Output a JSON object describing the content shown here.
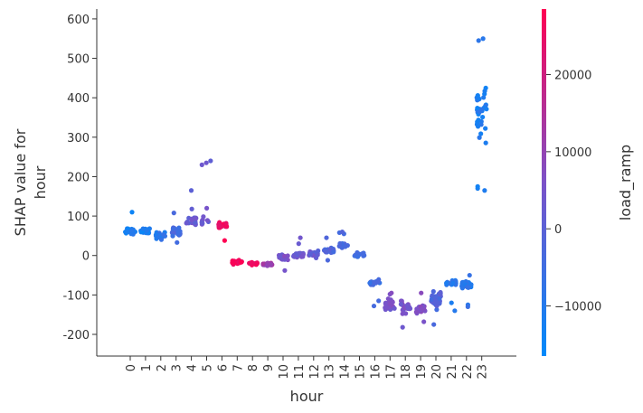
{
  "chart_data": {
    "type": "scatter",
    "title": "",
    "xlabel": "hour",
    "ylabel_line1": "SHAP value for",
    "ylabel_line2": "hour",
    "colorbar_label": "load_ramp",
    "categories": [
      "0",
      "1",
      "2",
      "3",
      "4",
      "5",
      "6",
      "7",
      "8",
      "9",
      "10",
      "11",
      "12",
      "13",
      "14",
      "15",
      "16",
      "17",
      "18",
      "19",
      "20",
      "21",
      "22",
      "23"
    ],
    "ylim": [
      -255,
      625
    ],
    "yticks": [
      -200,
      -100,
      0,
      100,
      200,
      300,
      400,
      500,
      600
    ],
    "color_range": [
      -16500,
      28500
    ],
    "colorbar_ticks": [
      -10000,
      0,
      10000,
      20000
    ],
    "colormap": [
      "#008afb",
      "#7c52c8",
      "#ff0052"
    ],
    "clusters": [
      {
        "hour": 0,
        "center": 62,
        "spread": 14,
        "count": 22,
        "color": -12000,
        "extras": [
          110
        ]
      },
      {
        "hour": 1,
        "center": 62,
        "spread": 10,
        "count": 24,
        "color": -12000,
        "extras": []
      },
      {
        "hour": 2,
        "center": 50,
        "spread": 12,
        "count": 24,
        "color": -9000,
        "extras": []
      },
      {
        "hour": 3,
        "center": 60,
        "spread": 16,
        "count": 24,
        "color": -4000,
        "extras": [
          108,
          33
        ]
      },
      {
        "hour": 4,
        "center": 85,
        "spread": 18,
        "count": 22,
        "color": 3000,
        "extras": [
          165,
          118
        ]
      },
      {
        "hour": 5,
        "center": 90,
        "spread": 22,
        "count": 8,
        "color": 3000,
        "extras": [
          240,
          235,
          230,
          120
        ]
      },
      {
        "hour": 6,
        "center": 78,
        "spread": 10,
        "count": 14,
        "color": 26000,
        "extras": [
          38
        ]
      },
      {
        "hour": 7,
        "center": -17,
        "spread": 6,
        "count": 22,
        "color": 27000,
        "extras": []
      },
      {
        "hour": 8,
        "center": -20,
        "spread": 5,
        "count": 22,
        "color": 26000,
        "extras": []
      },
      {
        "hour": 9,
        "center": -22,
        "spread": 5,
        "count": 22,
        "color": 12000,
        "extras": []
      },
      {
        "hour": 10,
        "center": -5,
        "spread": 10,
        "count": 16,
        "color": 5000,
        "extras": [
          -38
        ]
      },
      {
        "hour": 11,
        "center": 0,
        "spread": 12,
        "count": 18,
        "color": 3000,
        "extras": [
          45,
          30
        ]
      },
      {
        "hour": 12,
        "center": 5,
        "spread": 12,
        "count": 20,
        "color": 2000,
        "extras": []
      },
      {
        "hour": 13,
        "center": 12,
        "spread": 12,
        "count": 20,
        "color": -2000,
        "extras": [
          45,
          -12
        ]
      },
      {
        "hour": 14,
        "center": 25,
        "spread": 10,
        "count": 14,
        "color": -3000,
        "extras": [
          58,
          55,
          60
        ]
      },
      {
        "hour": 15,
        "center": 0,
        "spread": 10,
        "count": 14,
        "color": -6000,
        "extras": []
      },
      {
        "hour": 16,
        "center": -68,
        "spread": 12,
        "count": 16,
        "color": -5000,
        "extras": [
          -115,
          -128
        ]
      },
      {
        "hour": 17,
        "center": -125,
        "spread": 22,
        "count": 24,
        "color": 5000,
        "extras": [
          -98,
          -95
        ]
      },
      {
        "hour": 18,
        "center": -132,
        "spread": 22,
        "count": 24,
        "color": 6000,
        "extras": [
          -182
        ]
      },
      {
        "hour": 19,
        "center": -138,
        "spread": 18,
        "count": 22,
        "color": 6000,
        "extras": [
          -95,
          -168
        ]
      },
      {
        "hour": 20,
        "center": -115,
        "spread": 32,
        "count": 34,
        "color": -2000,
        "extras": [
          -175
        ]
      },
      {
        "hour": 21,
        "center": -70,
        "spread": 12,
        "count": 20,
        "color": -10000,
        "extras": [
          -140,
          -120
        ]
      },
      {
        "hour": 22,
        "center": -75,
        "spread": 14,
        "count": 26,
        "color": -9000,
        "extras": [
          -50,
          -125,
          -130
        ]
      },
      {
        "hour": 23,
        "center": 360,
        "spread": 115,
        "count": 34,
        "color": -11000,
        "extras": [
          550,
          545,
          165,
          170,
          175
        ]
      }
    ],
    "grid": false,
    "legend": "colorbar-right"
  }
}
